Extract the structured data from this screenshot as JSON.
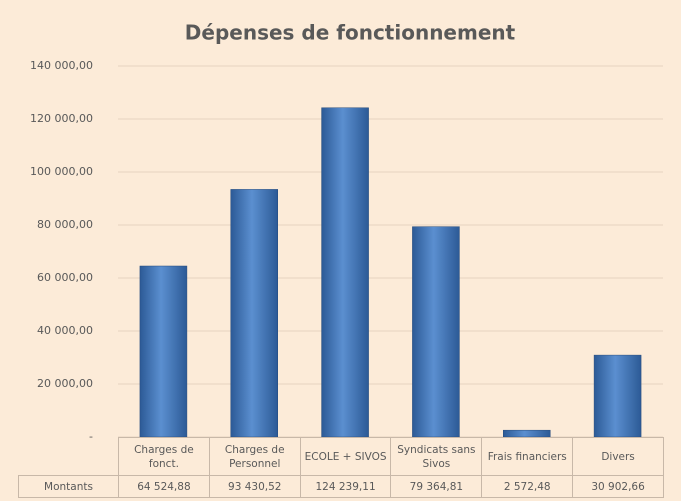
{
  "chart_data": {
    "type": "bar",
    "title": "Dépenses de fonctionnement",
    "categories": [
      "Charges de fonct.",
      "Charges de Personnel",
      "ECOLE + SIVOS",
      "Syndicats sans Sivos",
      "Frais financiers",
      "Divers"
    ],
    "series": [
      {
        "name": "Montants",
        "color": "#4a7ebb",
        "values": [
          64524.88,
          93430.52,
          124239.11,
          79364.81,
          2572.48,
          30902.66
        ],
        "value_labels": [
          "64 524,88",
          "93 430,52",
          "124 239,11",
          "79 364,81",
          "2 572,48",
          "30 902,66"
        ]
      }
    ],
    "ylim": [
      0,
      140000
    ],
    "yticks": [
      {
        "value": 0,
        "label": "-"
      },
      {
        "value": 20000,
        "label": "20 000,00"
      },
      {
        "value": 40000,
        "label": "40 000,00"
      },
      {
        "value": 60000,
        "label": "60 000,00"
      },
      {
        "value": 80000,
        "label": "80 000,00"
      },
      {
        "value": 100000,
        "label": "100 000,00"
      },
      {
        "value": 120000,
        "label": "120 000,00"
      },
      {
        "value": 140000,
        "label": "140 000,00"
      }
    ],
    "grid": true
  }
}
